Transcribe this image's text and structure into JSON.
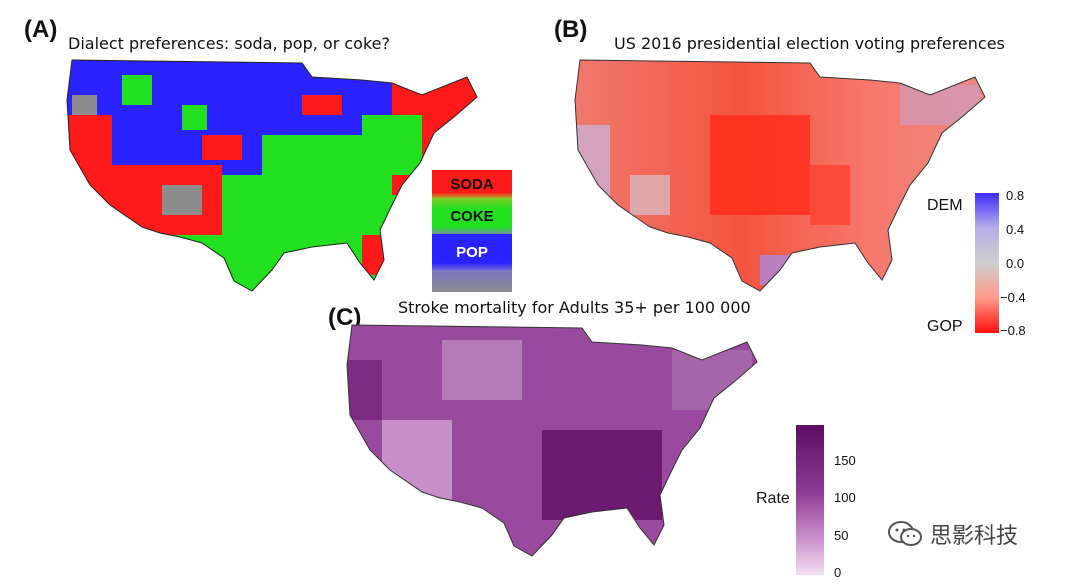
{
  "panels": [
    {
      "letter": "(A)",
      "title": "Dialect preferences: soda, pop, or coke?"
    },
    {
      "letter": "(B)",
      "title": "US 2016 presidential election voting preferences"
    },
    {
      "letter": "(C)",
      "title": "Stroke mortality for Adults 35+ per 100 000"
    }
  ],
  "legend_a": {
    "items": [
      {
        "label": "SODA",
        "color": "#ff1a1a"
      },
      {
        "label": "COKE",
        "color": "#22e01f"
      },
      {
        "label": "POP",
        "color": "#2a22ff"
      }
    ],
    "other_color": "#8c8c8c"
  },
  "legend_b": {
    "top_word": "DEM",
    "bottom_word": "GOP",
    "ticks": [
      "0.8",
      "0.4",
      "0.0",
      "−0.4",
      "−0.8"
    ],
    "colors": {
      "dem": "#3b2bff",
      "mid": "#cfcfcf",
      "gop": "#ff1010"
    }
  },
  "legend_c": {
    "title": "Rate",
    "ticks": [
      "150",
      "100",
      "50",
      "0"
    ],
    "colors": {
      "low": "#f3dff1",
      "high": "#5a0f63"
    }
  },
  "watermark": {
    "text": "思影科技",
    "icon": "wechat-icon"
  }
}
